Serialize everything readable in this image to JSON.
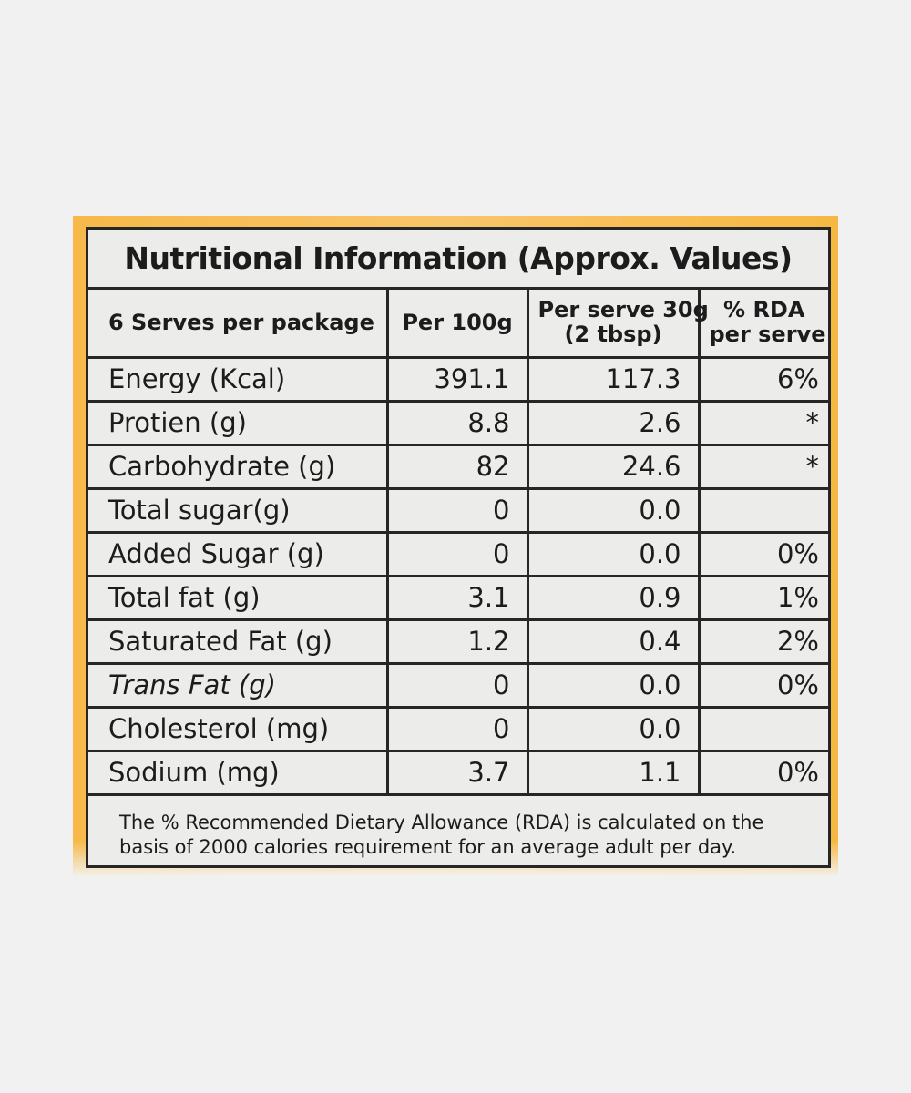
{
  "panel": {
    "title": "Nutritional Information (Approx. Values)"
  },
  "table": {
    "headers": {
      "serves": "6 Serves per package",
      "per100_label": "Per 100g",
      "perserve_line1": "Per serve 30g",
      "perserve_line2": "(2 tbsp)",
      "rda_line1": "% RDA",
      "rda_line2": "per serve"
    },
    "rows": [
      {
        "name": "Energy (Kcal)",
        "per100": "391.1",
        "perserve": "117.3",
        "rda": "6%"
      },
      {
        "name": "Protien (g)",
        "per100": "8.8",
        "perserve": "2.6",
        "rda": "*"
      },
      {
        "name": "Carbohydrate (g)",
        "per100": "82",
        "perserve": "24.6",
        "rda": "*"
      },
      {
        "name": "Total sugar(g)",
        "per100": "0",
        "perserve": "0.0",
        "rda": ""
      },
      {
        "name": "Added Sugar  (g)",
        "per100": "0",
        "perserve": "0.0",
        "rda": "0%"
      },
      {
        "name": "Total fat  (g)",
        "per100": "3.1",
        "perserve": "0.9",
        "rda": "1%"
      },
      {
        "name": "Saturated Fat  (g)",
        "per100": "1.2",
        "perserve": "0.4",
        "rda": "2%"
      },
      {
        "name": "Trans Fat  (g)",
        "per100": "0",
        "perserve": "0.0",
        "rda": "0%"
      },
      {
        "name": "Cholesterol  (mg)",
        "per100": "0",
        "perserve": "0.0",
        "rda": ""
      },
      {
        "name": "Sodium (mg)",
        "per100": "3.7",
        "perserve": "1.1",
        "rda": "0%"
      }
    ]
  },
  "footnote": {
    "line1": "The % Recommended Dietary Allowance (RDA) is calculated on the",
    "line2": "basis of 2000 calories requirement for an average adult per day."
  },
  "colors": {
    "background": "#f1f1f1",
    "packaging": "#f6b94a",
    "label": "#ececea",
    "ink": "#1c1c1c"
  }
}
